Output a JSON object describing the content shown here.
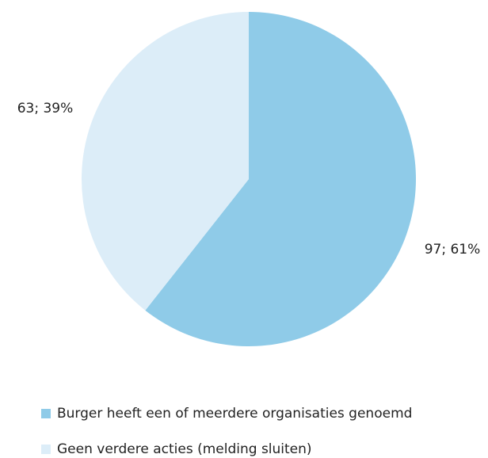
{
  "chart_data": {
    "type": "pie",
    "categories": [
      "Burger heeft een of meerdere organisaties genoemd",
      "Geen verdere acties (melding sluiten)"
    ],
    "values": [
      97,
      63
    ],
    "value_labels": [
      "97; 61%",
      "63; 39%"
    ],
    "colors": [
      "#8fcbe8",
      "#dcedf8"
    ],
    "legend": "bottom"
  }
}
